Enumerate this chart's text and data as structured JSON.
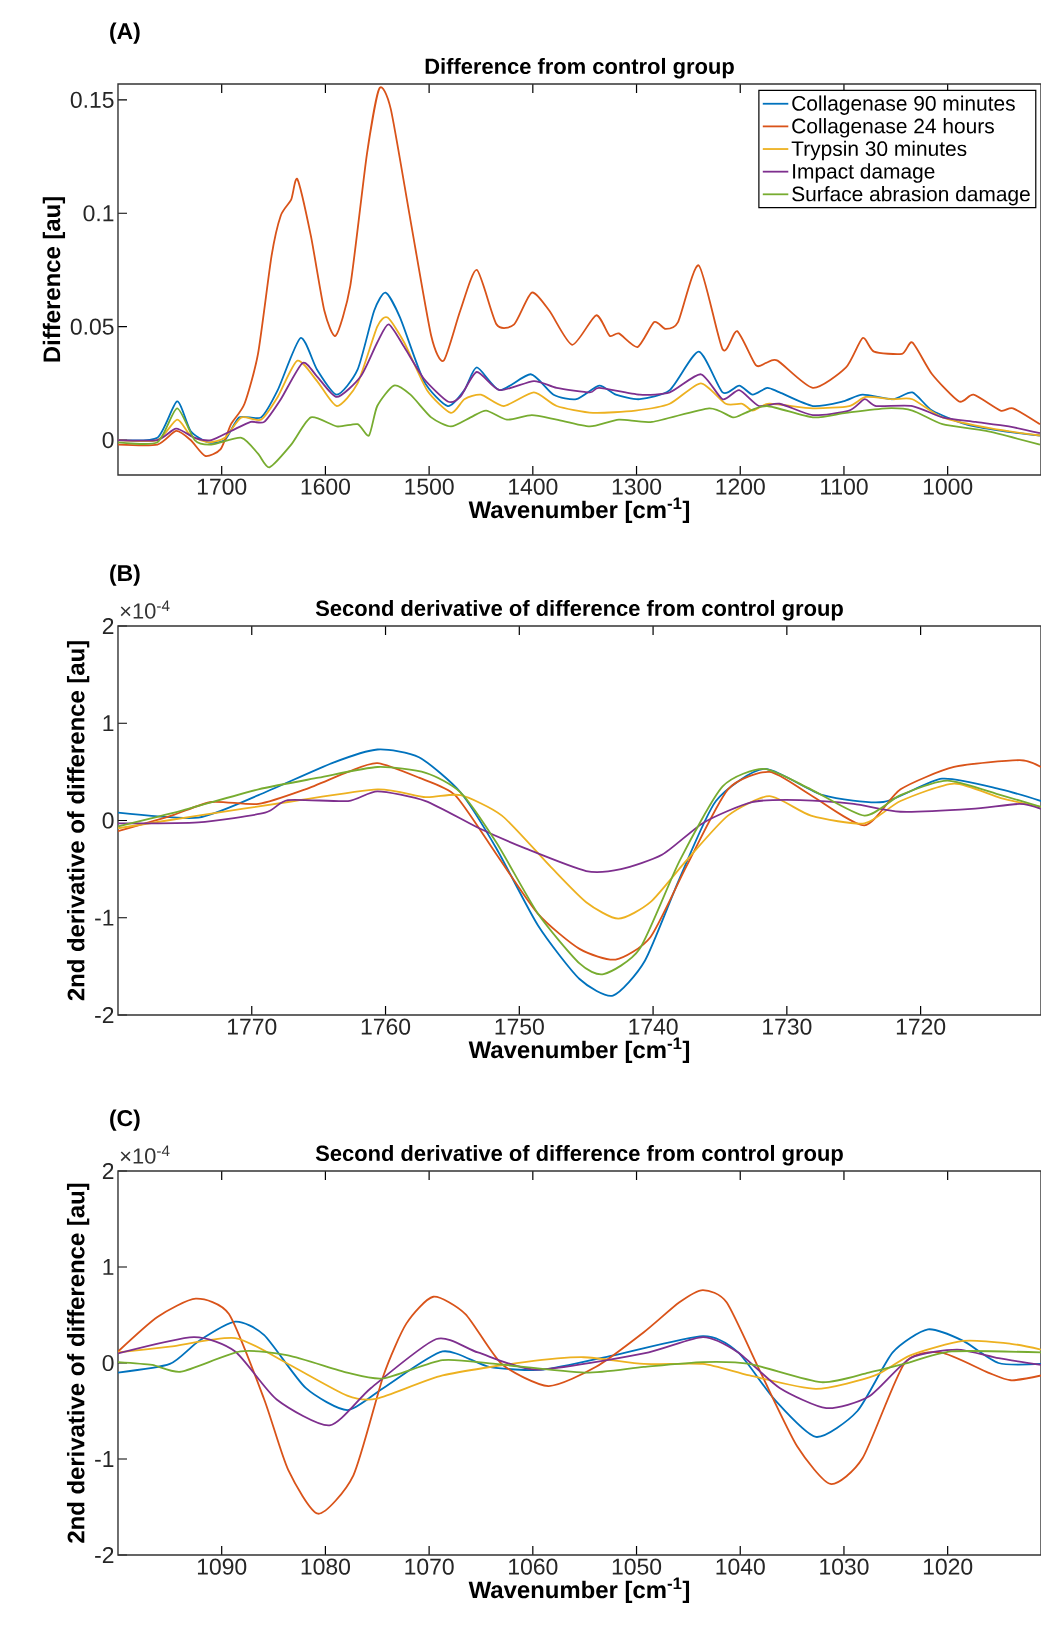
{
  "chart_data": [
    {
      "type": "line",
      "title": "Difference from control group",
      "xlabel": "Wavenumber [cm$^{-1}$]",
      "ylabel": "Difference [au]",
      "xlim": [
        1800,
        910
      ],
      "ylim": [
        -0.0154,
        0.157
      ],
      "xticks": [
        1700,
        1600,
        1500,
        1400,
        1300,
        1200,
        1100,
        1000
      ],
      "yticks": [
        0,
        0.05,
        0.1,
        0.15
      ],
      "legend": "top right",
      "marker": "none",
      "line_style": "solid",
      "annotations": [
        "(A)"
      ],
      "series": [
        {
          "name": "Collagenase 90 minutes",
          "color": "#0072bd",
          "x": [
            1800,
            1762,
            1743,
            1730,
            1713,
            1697,
            1683,
            1662,
            1646,
            1624,
            1608,
            1589,
            1569,
            1553,
            1542,
            1528,
            1505,
            1482,
            1466,
            1454,
            1432,
            1402,
            1380,
            1358,
            1336,
            1320,
            1297,
            1268,
            1240,
            1217,
            1201,
            1188,
            1174,
            1162,
            1130,
            1101,
            1082,
            1053,
            1034,
            1015,
            983,
            948,
            911
          ],
          "values": [
            0,
            0.001,
            0.017,
            0.004,
            -0.001,
            0,
            0.01,
            0.01,
            0.022,
            0.045,
            0.031,
            0.02,
            0.031,
            0.057,
            0.065,
            0.054,
            0.026,
            0.015,
            0.022,
            0.032,
            0.022,
            0.029,
            0.02,
            0.018,
            0.024,
            0.02,
            0.018,
            0.022,
            0.039,
            0.021,
            0.024,
            0.02,
            0.023,
            0.021,
            0.015,
            0.017,
            0.02,
            0.018,
            0.021,
            0.013,
            0.007,
            0.004,
            0.002
          ]
        },
        {
          "name": "Collagenase 24 hours",
          "color": "#d95319",
          "x": [
            1800,
            1762,
            1744,
            1730,
            1716,
            1701,
            1691,
            1678,
            1665,
            1652,
            1643,
            1633,
            1627,
            1614,
            1601,
            1590,
            1576,
            1560,
            1548,
            1537,
            1518,
            1498,
            1486,
            1470,
            1454,
            1435,
            1418,
            1401,
            1384,
            1362,
            1339,
            1326,
            1317,
            1299,
            1283,
            1272,
            1260,
            1240,
            1217,
            1203,
            1185,
            1175,
            1164,
            1130,
            1098,
            1082,
            1071,
            1044,
            1034,
            1015,
            989,
            975,
            949,
            937,
            911
          ],
          "values": [
            -0.002,
            -0.002,
            0.004,
            0,
            -0.007,
            -0.004,
            0.007,
            0.016,
            0.038,
            0.081,
            0.099,
            0.106,
            0.115,
            0.09,
            0.057,
            0.046,
            0.068,
            0.126,
            0.155,
            0.146,
            0.097,
            0.046,
            0.035,
            0.057,
            0.075,
            0.051,
            0.051,
            0.065,
            0.057,
            0.042,
            0.055,
            0.046,
            0.047,
            0.041,
            0.052,
            0.049,
            0.052,
            0.077,
            0.04,
            0.048,
            0.033,
            0.034,
            0.035,
            0.023,
            0.032,
            0.045,
            0.039,
            0.038,
            0.043,
            0.029,
            0.017,
            0.02,
            0.013,
            0.014,
            0.007
          ]
        },
        {
          "name": "Trypsin 30 minutes",
          "color": "#edb120",
          "x": [
            1800,
            1762,
            1743,
            1730,
            1713,
            1697,
            1681,
            1662,
            1646,
            1627,
            1608,
            1589,
            1569,
            1550,
            1540,
            1524,
            1502,
            1479,
            1466,
            1450,
            1428,
            1399,
            1377,
            1342,
            1301,
            1268,
            1238,
            1214,
            1198,
            1188,
            1172,
            1130,
            1095,
            1079,
            1053,
            1034,
            1005,
            957,
            911
          ],
          "values": [
            0,
            0,
            0.009,
            0.002,
            -0.001,
            0.001,
            0.01,
            0.009,
            0.019,
            0.035,
            0.026,
            0.015,
            0.025,
            0.05,
            0.054,
            0.043,
            0.022,
            0.012,
            0.018,
            0.02,
            0.015,
            0.021,
            0.015,
            0.012,
            0.013,
            0.016,
            0.025,
            0.016,
            0.016,
            0.013,
            0.016,
            0.014,
            0.015,
            0.019,
            0.018,
            0.018,
            0.01,
            0.005,
            0.002
          ]
        },
        {
          "name": "Impact damage",
          "color": "#7e2f8e",
          "x": [
            1800,
            1762,
            1744,
            1726,
            1710,
            1691,
            1672,
            1659,
            1643,
            1622,
            1608,
            1589,
            1566,
            1550,
            1539,
            1524,
            1505,
            1482,
            1470,
            1454,
            1432,
            1399,
            1377,
            1345,
            1336,
            1297,
            1268,
            1238,
            1217,
            1201,
            1182,
            1162,
            1130,
            1095,
            1080,
            1069,
            1034,
            1005,
            973,
            941,
            911
          ],
          "values": [
            0,
            0,
            0.005,
            0.001,
            0,
            0.004,
            0.008,
            0.008,
            0.018,
            0.034,
            0.028,
            0.019,
            0.028,
            0.043,
            0.051,
            0.041,
            0.027,
            0.017,
            0.019,
            0.03,
            0.022,
            0.026,
            0.023,
            0.021,
            0.023,
            0.02,
            0.021,
            0.029,
            0.018,
            0.022,
            0.015,
            0.016,
            0.011,
            0.013,
            0.018,
            0.015,
            0.015,
            0.01,
            0.008,
            0.006,
            0.003
          ]
        },
        {
          "name": "Surface abrasion damage",
          "color": "#77ac30",
          "x": [
            1800,
            1762,
            1743,
            1726,
            1710,
            1681,
            1665,
            1654,
            1633,
            1614,
            1589,
            1569,
            1558,
            1550,
            1534,
            1518,
            1498,
            1479,
            1460,
            1445,
            1425,
            1401,
            1377,
            1345,
            1317,
            1285,
            1230,
            1207,
            1195,
            1174,
            1130,
            1098,
            1059,
            1034,
            1005,
            963,
            911
          ],
          "values": [
            -0.001,
            -0.001,
            0.014,
            0,
            -0.002,
            0.001,
            -0.006,
            -0.012,
            -0.002,
            0.01,
            0.006,
            0.007,
            0.002,
            0.015,
            0.024,
            0.02,
            0.01,
            0.006,
            0.01,
            0.013,
            0.009,
            0.011,
            0.009,
            0.006,
            0.009,
            0.008,
            0.014,
            0.01,
            0.012,
            0.015,
            0.01,
            0.012,
            0.014,
            0.013,
            0.007,
            0.004,
            -0.002
          ]
        }
      ]
    },
    {
      "type": "line",
      "title": "Second derivative of difference from control group",
      "xlabel": "Wavenumber [cm$^{-1}$]",
      "ylabel": "2nd derivative of difference [au]",
      "xlim": [
        1780,
        1711
      ],
      "ylim": [
        -2,
        2
      ],
      "xticks": [
        1770,
        1760,
        1750,
        1740,
        1730,
        1720
      ],
      "yticks": [
        -2,
        -1,
        0,
        1,
        2
      ],
      "marker": "none",
      "line_style": "solid",
      "annotations": [
        "(B)",
        "×10$^{-4}$"
      ],
      "series": [
        {
          "color": "#0072bd",
          "x": [
            1780,
            1774,
            1769.5,
            1764,
            1760.6,
            1757.5,
            1754.4,
            1751.7,
            1748.6,
            1745.5,
            1743,
            1740.6,
            1738,
            1735.3,
            1731.7,
            1727.3,
            1722.8,
            1718.4,
            1714,
            1711
          ],
          "values": [
            0.08,
            0.03,
            0.26,
            0.59,
            0.73,
            0.65,
            0.29,
            -0.29,
            -1.08,
            -1.63,
            -1.8,
            -1.44,
            -0.59,
            0.2,
            0.53,
            0.26,
            0.19,
            0.43,
            0.32,
            0.2
          ]
        },
        {
          "color": "#d95319",
          "x": [
            1780,
            1776,
            1773,
            1769.5,
            1766,
            1762.8,
            1760.6,
            1757.5,
            1754.8,
            1751.7,
            1748.6,
            1745.5,
            1742.8,
            1740.2,
            1737.5,
            1734.4,
            1731.3,
            1728.2,
            1724.2,
            1721.5,
            1717.5,
            1712.6,
            1711
          ],
          "values": [
            -0.11,
            0.05,
            0.19,
            0.17,
            0.32,
            0.5,
            0.59,
            0.44,
            0.26,
            -0.35,
            -0.96,
            -1.32,
            -1.43,
            -1.2,
            -0.47,
            0.32,
            0.5,
            0.26,
            -0.05,
            0.32,
            0.55,
            0.62,
            0.55
          ]
        },
        {
          "color": "#edb120",
          "x": [
            1780,
            1774,
            1767.3,
            1760.6,
            1757,
            1754.4,
            1751.3,
            1747.7,
            1745,
            1742.6,
            1740.2,
            1737.5,
            1734.4,
            1731.3,
            1728.2,
            1724.2,
            1721.5,
            1717.5,
            1714,
            1711
          ],
          "values": [
            -0.08,
            0.05,
            0.19,
            0.32,
            0.24,
            0.26,
            0.05,
            -0.47,
            -0.84,
            -1.01,
            -0.84,
            -0.41,
            0.05,
            0.25,
            0.05,
            -0.03,
            0.2,
            0.38,
            0.23,
            0.14
          ]
        },
        {
          "color": "#7e2f8e",
          "x": [
            1780,
            1774,
            1769,
            1767.3,
            1762.8,
            1760.6,
            1757,
            1753,
            1749.5,
            1745,
            1742.4,
            1739.3,
            1736.2,
            1732.6,
            1729,
            1725,
            1721.5,
            1716.2,
            1712.6,
            1711
          ],
          "values": [
            -0.03,
            -0.02,
            0.08,
            0.21,
            0.2,
            0.3,
            0.2,
            -0.08,
            -0.29,
            -0.52,
            -0.5,
            -0.35,
            -0.02,
            0.19,
            0.21,
            0.17,
            0.09,
            0.12,
            0.17,
            0.12
          ]
        },
        {
          "color": "#77ac30",
          "x": [
            1780,
            1775.3,
            1769.5,
            1765,
            1760.6,
            1757,
            1754.4,
            1751.7,
            1748.6,
            1745.5,
            1743.7,
            1741,
            1738,
            1734.8,
            1731.7,
            1728.2,
            1724.2,
            1721.5,
            1718,
            1714,
            1711
          ],
          "values": [
            -0.06,
            0.1,
            0.32,
            0.44,
            0.55,
            0.49,
            0.29,
            -0.23,
            -0.96,
            -1.47,
            -1.58,
            -1.32,
            -0.41,
            0.35,
            0.53,
            0.32,
            0.05,
            0.26,
            0.41,
            0.26,
            0.14
          ]
        }
      ]
    },
    {
      "type": "line",
      "title": "Second derivative of difference from control group",
      "xlabel": "Wavenumber [cm$^{-1}$]",
      "ylabel": "2nd derivative of difference [au]",
      "xlim": [
        1100,
        1011
      ],
      "ylim": [
        -2,
        2
      ],
      "xticks": [
        1090,
        1080,
        1070,
        1060,
        1050,
        1040,
        1030,
        1020
      ],
      "yticks": [
        -2,
        -1,
        0,
        1,
        2
      ],
      "marker": "none",
      "line_style": "solid",
      "annotations": [
        "(C)",
        "×10$^{-4}$"
      ],
      "series": [
        {
          "color": "#0072bd",
          "x": [
            1100,
            1095,
            1092.2,
            1088.7,
            1085.9,
            1081.9,
            1077.9,
            1074.4,
            1068.7,
            1064.2,
            1059,
            1052.2,
            1043.6,
            1040.2,
            1036.7,
            1032.7,
            1028.7,
            1025.3,
            1021.9,
            1018.5,
            1015.1,
            1011
          ],
          "values": [
            -0.1,
            -0.01,
            0.23,
            0.43,
            0.29,
            -0.26,
            -0.49,
            -0.26,
            0.12,
            -0.04,
            -0.07,
            0.08,
            0.28,
            0.11,
            -0.38,
            -0.77,
            -0.5,
            0.11,
            0.35,
            0.23,
            0,
            -0.01
          ]
        },
        {
          "color": "#d95319",
          "x": [
            1100,
            1096.2,
            1092.5,
            1089.3,
            1085.9,
            1083.6,
            1080.7,
            1077.3,
            1074.4,
            1072.2,
            1069.6,
            1066.5,
            1063,
            1058.5,
            1053.9,
            1049.3,
            1045.9,
            1043.6,
            1041.3,
            1037.9,
            1034.5,
            1031.3,
            1028.2,
            1024.2,
            1020.7,
            1016.1,
            1013.9,
            1011
          ],
          "values": [
            0.12,
            0.48,
            0.67,
            0.51,
            -0.38,
            -1.11,
            -1.57,
            -1.17,
            -0.13,
            0.41,
            0.69,
            0.51,
            -0.01,
            -0.24,
            -0.04,
            0.32,
            0.63,
            0.76,
            0.63,
            -0.13,
            -0.87,
            -1.26,
            -0.99,
            -0.01,
            0.11,
            -0.1,
            -0.18,
            -0.13
          ]
        },
        {
          "color": "#edb120",
          "x": [
            1100,
            1095,
            1088.7,
            1083.6,
            1077.9,
            1075,
            1068.7,
            1060.8,
            1055.1,
            1049.3,
            1043.6,
            1039.1,
            1032.7,
            1027,
            1023.6,
            1018.5,
            1013.9,
            1011
          ],
          "values": [
            0.11,
            0.17,
            0.26,
            -0.01,
            -0.34,
            -0.37,
            -0.13,
            0.01,
            0.06,
            -0.01,
            -0.01,
            -0.13,
            -0.27,
            -0.13,
            0.08,
            0.23,
            0.2,
            0.14
          ]
        },
        {
          "color": "#7e2f8e",
          "x": [
            1100,
            1092.7,
            1088.7,
            1084.7,
            1079.6,
            1075.6,
            1069.3,
            1065.3,
            1059.6,
            1049.3,
            1043.6,
            1040.2,
            1036.2,
            1031.7,
            1027.6,
            1023.6,
            1019.1,
            1015.1,
            1011
          ],
          "values": [
            0.1,
            0.27,
            0.12,
            -0.38,
            -0.65,
            -0.26,
            0.25,
            0.11,
            -0.07,
            0.1,
            0.27,
            0.11,
            -0.26,
            -0.47,
            -0.35,
            0.05,
            0.14,
            0.05,
            -0.02
          ]
        },
        {
          "color": "#77ac30",
          "x": [
            1100,
            1096.7,
            1093.9,
            1088.2,
            1083.6,
            1077.9,
            1074.4,
            1068.7,
            1063.6,
            1055,
            1049.3,
            1043.6,
            1039.1,
            1032.2,
            1027.6,
            1024.2,
            1019.6,
            1011
          ],
          "values": [
            0.01,
            -0.02,
            -0.09,
            0.12,
            0.08,
            -0.1,
            -0.16,
            0.03,
            -0.01,
            -0.1,
            -0.04,
            0.01,
            -0.01,
            -0.2,
            -0.1,
            -0.01,
            0.12,
            0.11
          ]
        }
      ]
    }
  ]
}
